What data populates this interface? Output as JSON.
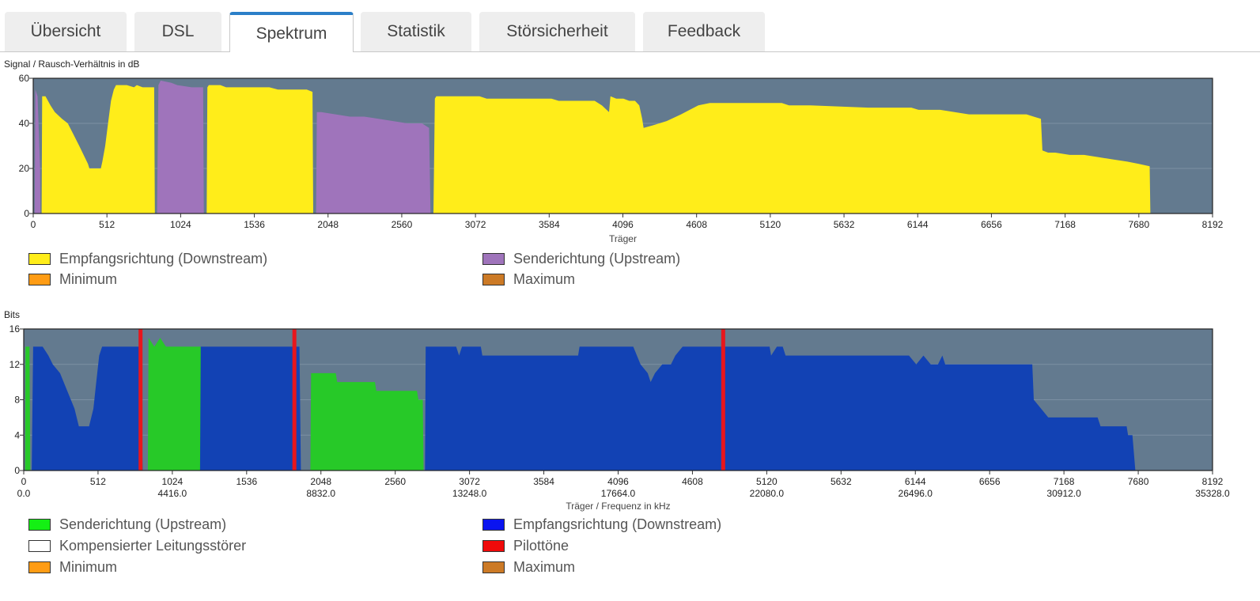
{
  "tabs": [
    {
      "label": "Übersicht",
      "active": false
    },
    {
      "label": "DSL",
      "active": false
    },
    {
      "label": "Spektrum",
      "active": true
    },
    {
      "label": "Statistik",
      "active": false
    },
    {
      "label": "Störsicherheit",
      "active": false
    },
    {
      "label": "Feedback",
      "active": false
    }
  ],
  "colors": {
    "plot_bg": "#637a8f",
    "downstream_snr": "#ffed1a",
    "upstream_snr": "#9f74bb",
    "upstream_bits": "#27c928",
    "downstream_bits": "#1242b4",
    "pilot": "#e8161c",
    "minimum": "#ff9c14",
    "maximum": "#cc7a26",
    "compensated": "#ffffff",
    "legend_upstream_bits": "#14f014",
    "legend_downstream_bits": "#0a14f0",
    "legend_pilot": "#f00a0a",
    "active_tab_accent": "#2b7fc8"
  },
  "chart_data": [
    {
      "type": "area",
      "title": "Signal / Rausch-Verhältnis in dB",
      "xlabel": "Träger",
      "ylabel": "",
      "xlim": [
        0,
        8192
      ],
      "ylim": [
        0,
        60
      ],
      "xticks": [
        0,
        512,
        1024,
        1536,
        2048,
        2560,
        3072,
        3584,
        4096,
        4608,
        5120,
        5632,
        6144,
        6656,
        7168,
        7680,
        8192
      ],
      "yticks": [
        0,
        20,
        40,
        60
      ],
      "legend": [
        {
          "name": "Empfangsrichtung (Downstream)",
          "color": "#ffed1a"
        },
        {
          "name": "Senderichtung (Upstream)",
          "color": "#9f74bb"
        },
        {
          "name": "Minimum",
          "color": "#ff9c14"
        },
        {
          "name": "Maximum",
          "color": "#cc7a26"
        }
      ],
      "series": [
        {
          "name": "Senderichtung (Upstream)",
          "color": "#9f74bb",
          "x": [
            10,
            15,
            30,
            48,
            50
          ],
          "y": [
            0,
            55,
            52,
            20,
            0
          ]
        },
        {
          "name": "Empfangsrichtung (Downstream)",
          "color": "#ffed1a",
          "x": [
            58,
            62,
            85,
            120,
            150,
            200,
            240,
            280,
            320,
            380,
            390,
            430,
            470,
            480,
            500,
            520,
            540,
            560,
            575,
            600,
            650,
            700,
            720,
            760,
            840,
            845
          ],
          "y": [
            0,
            52,
            52,
            48,
            45,
            42,
            40,
            35,
            30,
            22,
            20,
            20,
            20,
            23,
            30,
            40,
            50,
            55,
            57,
            57,
            57,
            56,
            57,
            56,
            56,
            0
          ]
        },
        {
          "name": "Senderichtung (Upstream)",
          "color": "#9f74bb",
          "x": [
            860,
            870,
            885,
            960,
            1000,
            1100,
            1180,
            1185
          ],
          "y": [
            0,
            57,
            59,
            58,
            57,
            56,
            56,
            0
          ]
        },
        {
          "name": "Empfangsrichtung (Downstream)",
          "color": "#ffed1a",
          "x": [
            1205,
            1210,
            1220,
            1300,
            1340,
            1500,
            1640,
            1700,
            1900,
            1940,
            1945
          ],
          "y": [
            0,
            56,
            57,
            57,
            56,
            56,
            56,
            55,
            55,
            54,
            0
          ]
        },
        {
          "name": "Senderichtung (Upstream)",
          "color": "#9f74bb",
          "x": [
            1965,
            1970,
            2000,
            2100,
            2200,
            2300,
            2400,
            2500,
            2600,
            2700,
            2750,
            2760
          ],
          "y": [
            0,
            45,
            45,
            44,
            43,
            43,
            42,
            41,
            40,
            40,
            38,
            0
          ]
        },
        {
          "name": "Empfangsrichtung (Downstream)",
          "color": "#ffed1a",
          "x": [
            2780,
            2790,
            2800,
            3100,
            3150,
            3300,
            3600,
            3650,
            3900,
            3950,
            4000,
            4010,
            4050,
            4100,
            4140,
            4180,
            4210,
            4230,
            4240,
            4300,
            4400,
            4500,
            4560,
            4620,
            4700,
            4800,
            5200,
            5250,
            5300,
            5400,
            5800,
            6100,
            6150,
            6300,
            6400,
            6500,
            6900,
            6950,
            7000,
            7010,
            7050,
            7100,
            7200,
            7300,
            7400,
            7500,
            7600,
            7680,
            7755,
            7760
          ],
          "y": [
            0,
            51,
            52,
            52,
            51,
            51,
            51,
            50,
            50,
            48,
            45,
            52,
            51,
            51,
            50,
            50,
            48,
            42,
            38,
            39,
            41,
            44,
            46,
            48,
            49,
            49,
            49,
            48,
            48,
            48,
            47,
            47,
            46,
            46,
            45,
            44,
            44,
            43,
            42,
            28,
            27,
            27,
            26,
            26,
            25,
            24,
            23,
            22,
            21,
            0
          ]
        }
      ]
    },
    {
      "type": "area",
      "title": "Bits",
      "xlabel": "Träger / Frequenz in kHz",
      "ylabel": "",
      "xlim": [
        0,
        8192
      ],
      "ylim": [
        0,
        16
      ],
      "xticks": [
        0,
        512,
        1024,
        1536,
        2048,
        2560,
        3072,
        3584,
        4096,
        4608,
        5120,
        5632,
        6144,
        6656,
        7168,
        7680,
        8192
      ],
      "xticks_khz": [
        {
          "x": 0,
          "label": "0.0"
        },
        {
          "x": 1024,
          "label": "4416.0"
        },
        {
          "x": 2048,
          "label": "8832.0"
        },
        {
          "x": 3072,
          "label": "13248.0"
        },
        {
          "x": 4096,
          "label": "17664.0"
        },
        {
          "x": 5120,
          "label": "22080.0"
        },
        {
          "x": 6144,
          "label": "26496.0"
        },
        {
          "x": 7168,
          "label": "30912.0"
        },
        {
          "x": 8192,
          "label": "35328.0"
        }
      ],
      "yticks": [
        0,
        4,
        8,
        12,
        16
      ],
      "legend": [
        {
          "name": "Senderichtung (Upstream)",
          "color": "#14f014"
        },
        {
          "name": "Empfangsrichtung (Downstream)",
          "color": "#0a14f0"
        },
        {
          "name": "Kompensierter Leitungsstörer",
          "color": "#ffffff"
        },
        {
          "name": "Pilottöne",
          "color": "#f00a0a"
        },
        {
          "name": "Minimum",
          "color": "#ff9c14"
        },
        {
          "name": "Maximum",
          "color": "#cc7a26"
        }
      ],
      "pilot_tones": [
        805,
        1865,
        4820
      ],
      "series": [
        {
          "name": "Senderichtung (Upstream)",
          "color": "#27c928",
          "x": [
            10,
            12,
            40,
            45
          ],
          "y": [
            0,
            14,
            14,
            0
          ]
        },
        {
          "name": "Empfangsrichtung (Downstream)",
          "color": "#1242b4",
          "x": [
            55,
            65,
            130,
            170,
            200,
            250,
            300,
            350,
            380,
            420,
            450,
            480,
            500,
            520,
            540,
            560,
            800,
            820
          ],
          "y": [
            0,
            14,
            14,
            13,
            12,
            11,
            9,
            7,
            5,
            5,
            5,
            7,
            10,
            13,
            14,
            14,
            14,
            0
          ]
        },
        {
          "name": "Senderichtung (Upstream)",
          "color": "#27c928",
          "x": [
            855,
            860,
            900,
            940,
            980,
            1030,
            1220,
            1230
          ],
          "y": [
            0,
            15,
            14,
            15,
            14,
            14,
            14,
            0
          ]
        },
        {
          "name": "Empfangsrichtung (Downstream)",
          "color": "#1242b4",
          "x": [
            1215,
            1220,
            1900,
            1910
          ],
          "y": [
            0,
            14,
            14,
            0
          ]
        },
        {
          "name": "Senderichtung (Upstream)",
          "color": "#27c928",
          "x": [
            1975,
            1980,
            2150,
            2160,
            2420,
            2430,
            2710,
            2720,
            2750,
            2755
          ],
          "y": [
            0,
            11,
            11,
            10,
            10,
            9,
            9,
            8,
            8,
            0
          ]
        },
        {
          "name": "Empfangsrichtung (Downstream)",
          "color": "#1242b4",
          "x": [
            2765,
            2770,
            2980,
            3000,
            3020,
            3150,
            3160,
            3200,
            3650,
            3700,
            3820,
            3830,
            3880,
            4100,
            4150,
            4200,
            4250,
            4300,
            4320,
            4350,
            4400,
            4460,
            4490,
            4540,
            4600,
            4680,
            5140,
            5150,
            5190,
            5230,
            5250,
            5300,
            5320,
            5500,
            5700,
            6100,
            6150,
            6200,
            6250,
            6300,
            6330,
            6350,
            6400,
            6850,
            6900,
            6950,
            6960,
            7060,
            7070,
            7300,
            7400,
            7420,
            7560,
            7600,
            7610,
            7640,
            7660,
            7670
          ],
          "y": [
            0,
            14,
            14,
            13,
            14,
            14,
            13,
            13,
            13,
            13,
            13,
            14,
            14,
            14,
            14,
            14,
            12,
            11,
            10,
            11,
            12,
            12,
            13,
            14,
            14,
            14,
            14,
            13,
            14,
            14,
            13,
            13,
            13,
            13,
            13,
            13,
            12,
            13,
            12,
            12,
            13,
            12,
            12,
            12,
            12,
            12,
            8,
            6,
            6,
            6,
            6,
            5,
            5,
            5,
            4,
            4,
            0,
            0
          ]
        }
      ]
    }
  ]
}
